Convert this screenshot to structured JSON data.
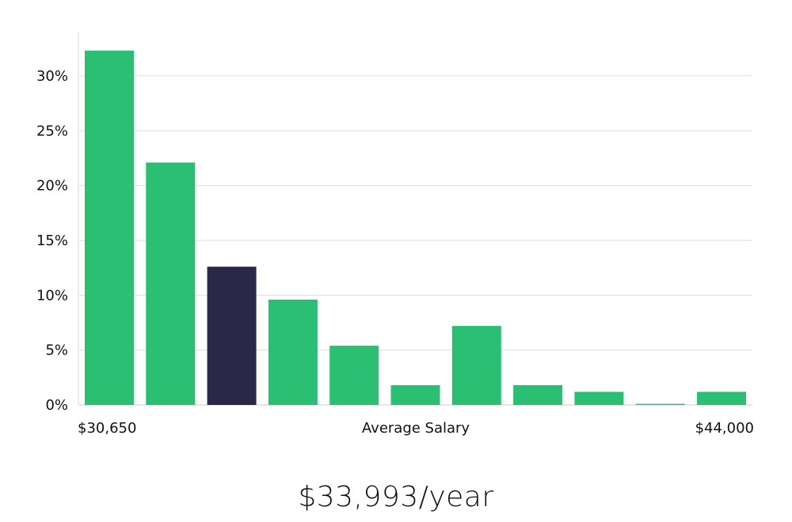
{
  "chart_data": {
    "type": "bar",
    "xlabel": "Average Salary",
    "x_min_label": "$30,650",
    "x_max_label": "$44,000",
    "y_ticks": [
      "0%",
      "5%",
      "10%",
      "15%",
      "20%",
      "25%",
      "30%"
    ],
    "ylim": [
      0,
      34
    ],
    "values": [
      32.3,
      22.1,
      12.6,
      9.6,
      5.4,
      1.8,
      7.2,
      1.8,
      1.2,
      0.1,
      1.2
    ],
    "highlight_index": 2,
    "colors": {
      "bar": "#2bbf74",
      "highlight": "#2a2749",
      "grid": "#dddddd",
      "axis": "#cccccc"
    }
  },
  "summary": {
    "salary_text": "$33,993/year"
  }
}
